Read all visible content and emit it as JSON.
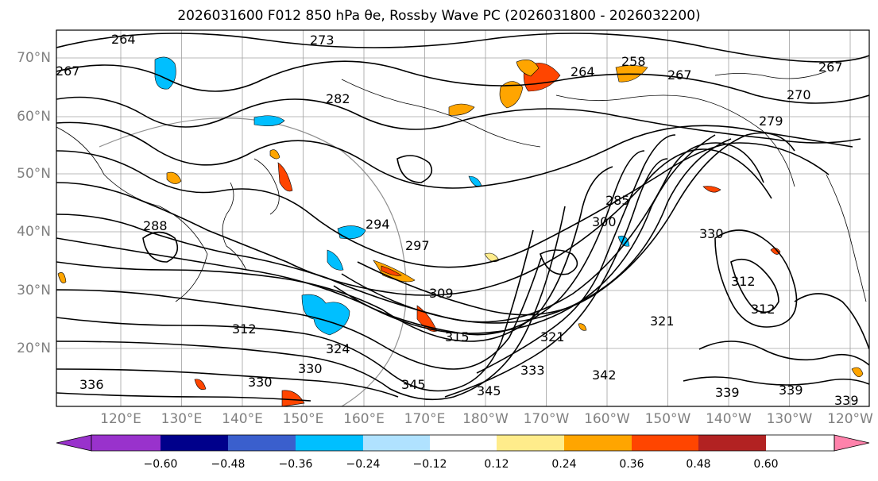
{
  "title": "2026031600 F012 850 hPa θe, Rossby Wave PC (2026031800 - 2026032200)",
  "lat_labels": [
    "70°N",
    "60°N",
    "50°N",
    "40°N",
    "30°N",
    "20°N"
  ],
  "lon_labels": [
    "120°E",
    "130°E",
    "140°E",
    "150°E",
    "160°E",
    "170°E",
    "180°W",
    "170°W",
    "160°W",
    "150°W",
    "140°W",
    "130°W",
    "120°W"
  ],
  "colorbar": {
    "colors": [
      "#9932cc",
      "#00008b",
      "#3a5fcd",
      "#00bfff",
      "#b0e2ff",
      "#ffffff",
      "#ffec8b",
      "#ffa500",
      "#ff4500",
      "#b22222",
      "#ff82ab"
    ],
    "ticks": [
      "−0.60",
      "−0.48",
      "−0.36",
      "−0.24",
      "−0.12",
      "0.12",
      "0.24",
      "0.36",
      "0.48",
      "0.60"
    ]
  },
  "contour_labels": [
    "264",
    "273",
    "267",
    "258",
    "264",
    "267",
    "267",
    "270",
    "279",
    "282",
    "288",
    "294",
    "297",
    "285",
    "309",
    "300",
    "312",
    "312",
    "312",
    "321",
    "324",
    "330",
    "330",
    "333",
    "339",
    "342",
    "345",
    "345",
    "336",
    "330",
    "339",
    "339",
    "321",
    "315"
  ]
}
